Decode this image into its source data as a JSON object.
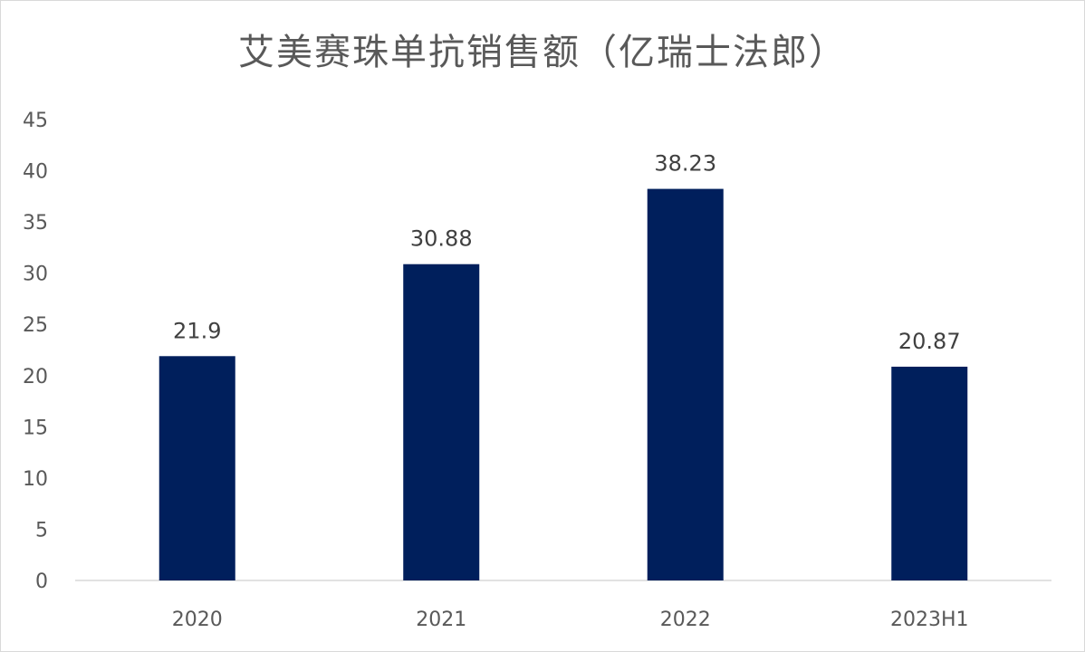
{
  "chart_data": {
    "type": "bar",
    "title": "艾美赛珠单抗销售额（亿瑞士法郎）",
    "categories": [
      "2020",
      "2021",
      "2022",
      "2023H1"
    ],
    "values": [
      21.9,
      30.88,
      38.23,
      20.87
    ],
    "data_labels": [
      "21.9",
      "30.88",
      "38.23",
      "20.87"
    ],
    "ylim": [
      0,
      45
    ],
    "yticks": [
      0,
      5,
      10,
      15,
      20,
      25,
      30,
      35,
      40,
      45
    ],
    "xlabel": "",
    "ylabel": "",
    "grid": false,
    "legend": "none",
    "bar_color": "#001F5C"
  }
}
